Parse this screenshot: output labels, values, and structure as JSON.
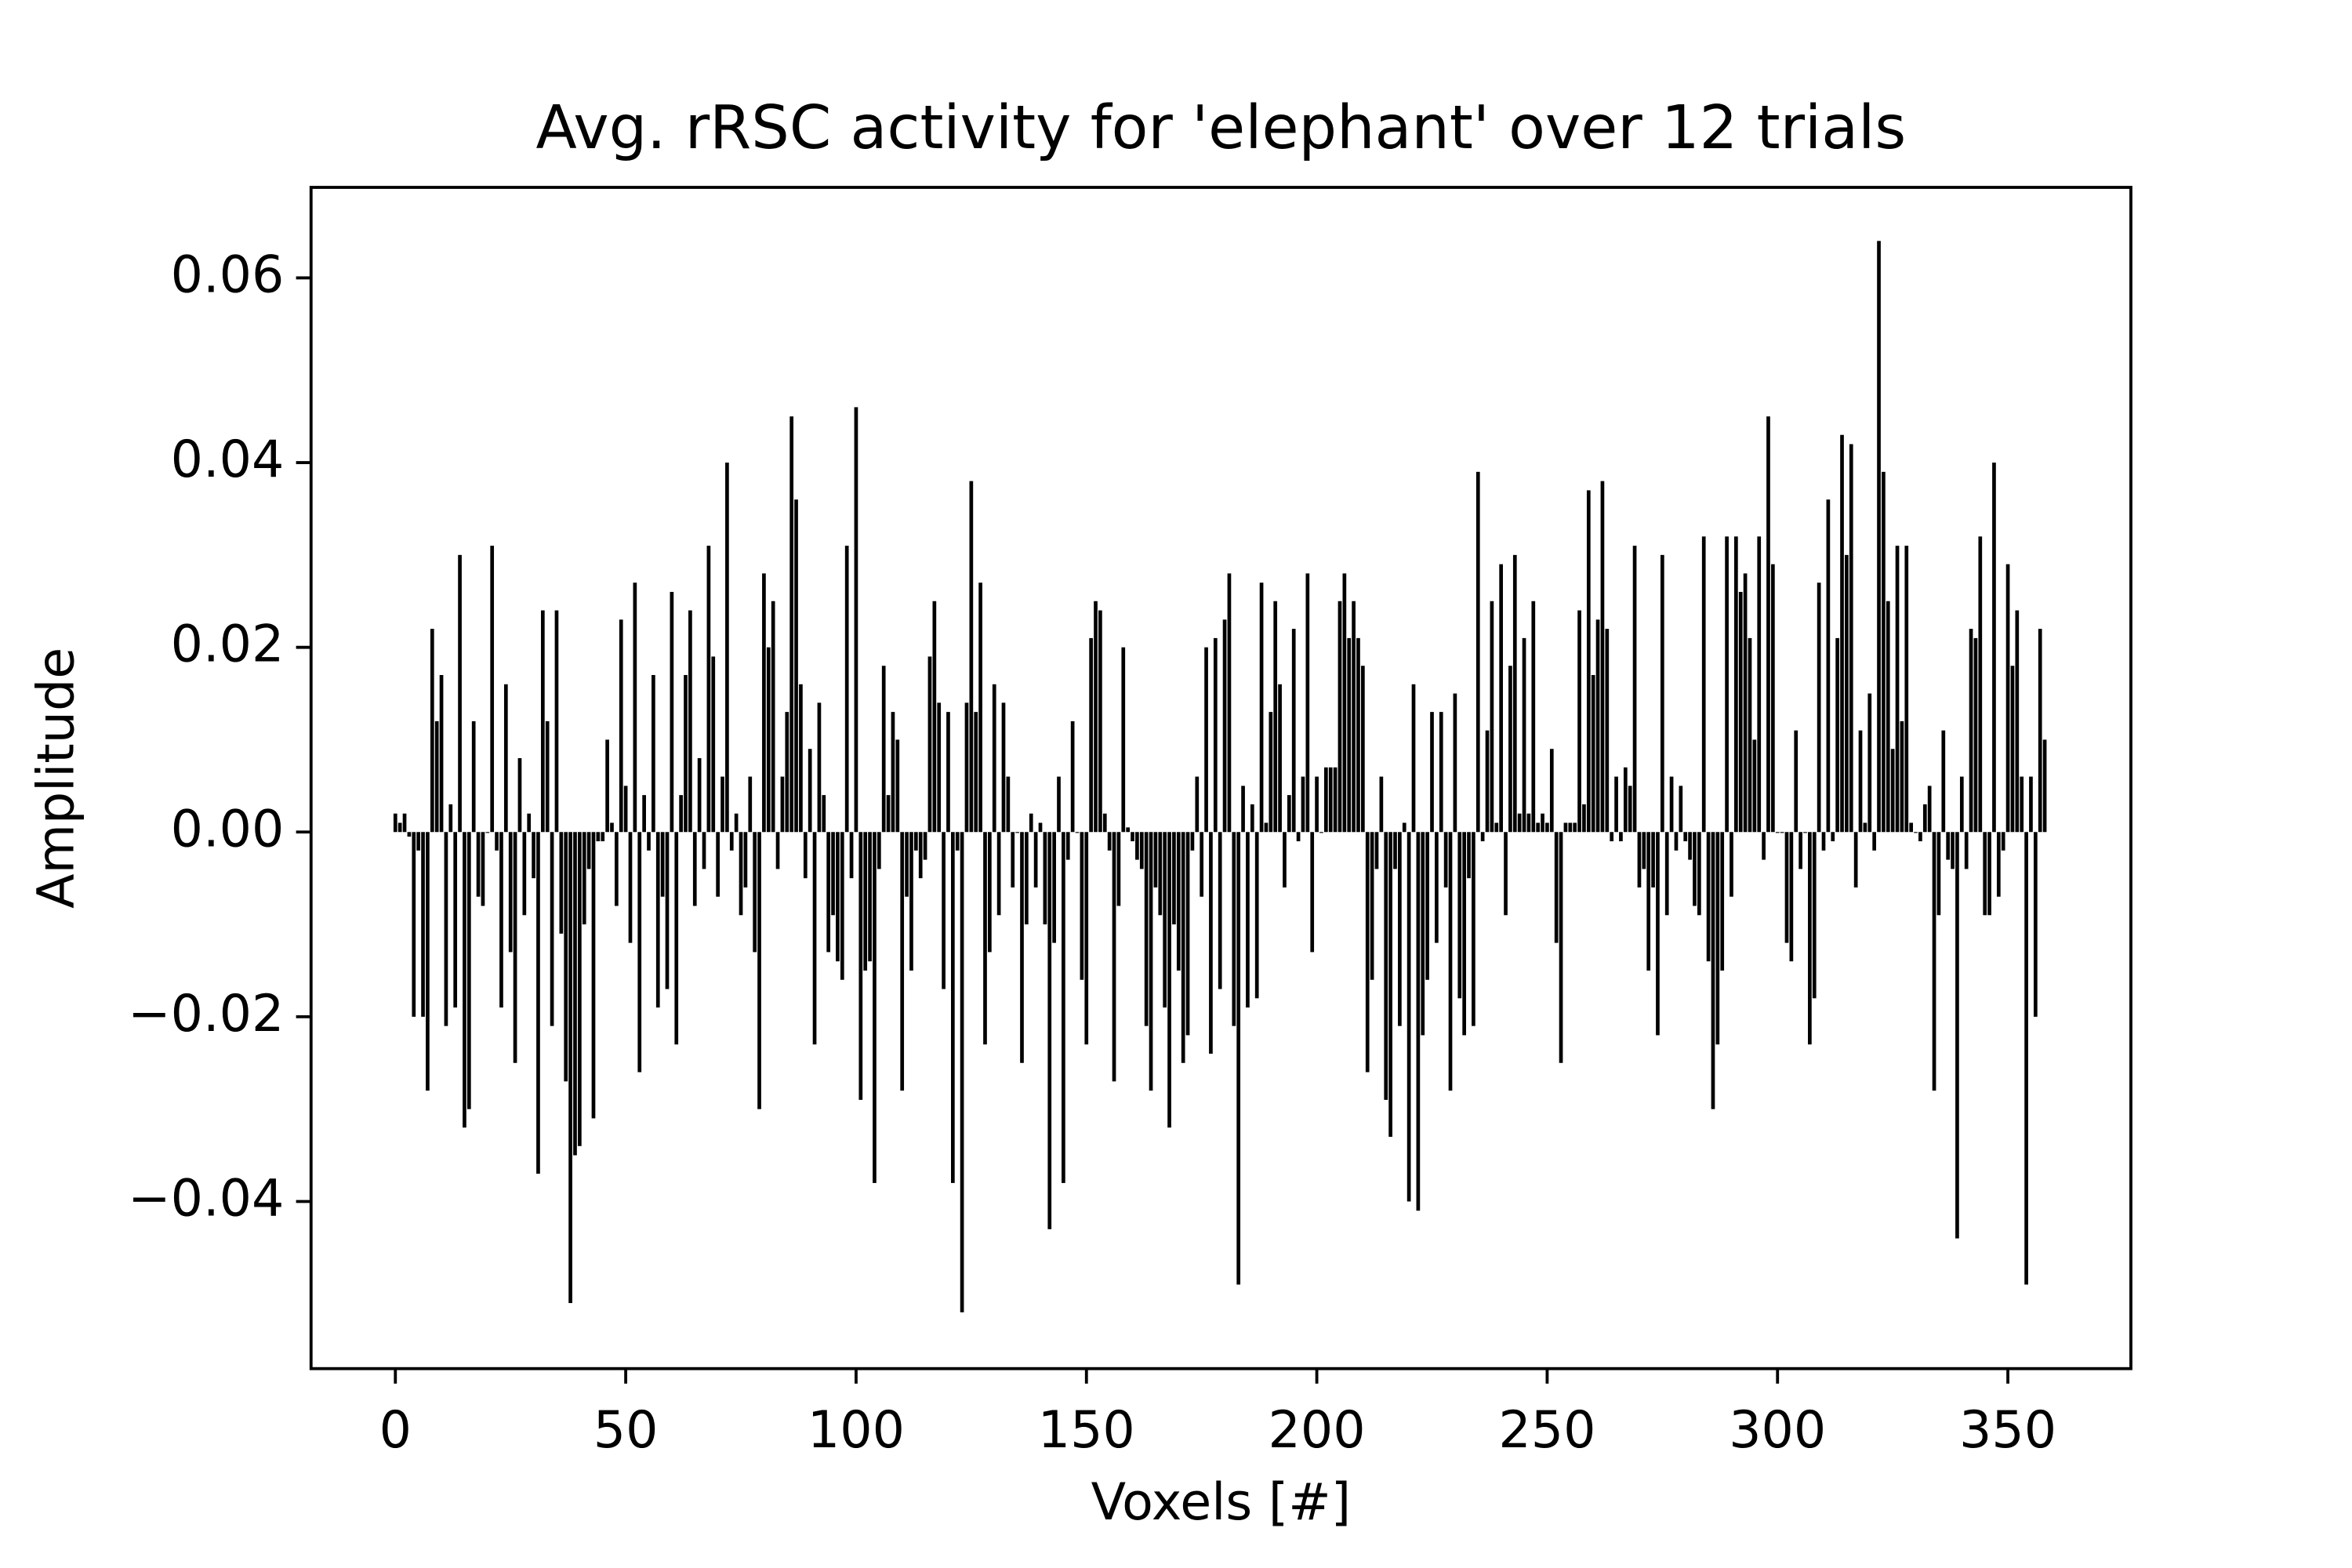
{
  "chart_data": {
    "type": "bar",
    "title": "Avg. rRSC activity for 'elephant' over 12 trials",
    "xlabel": "Voxels [#]",
    "ylabel": "Amplitude",
    "color": "#000000",
    "xlim": [
      -18.3,
      376.7
    ],
    "ylim": [
      -0.0581,
      0.0698
    ],
    "xticks": [
      0,
      50,
      100,
      150,
      200,
      250,
      300,
      350
    ],
    "yticks": [
      {
        "value": -0.04,
        "label": "−0.04"
      },
      {
        "value": -0.02,
        "label": "−0.02"
      },
      {
        "value": 0,
        "label": "0.00"
      },
      0.02,
      0.04,
      0.06
    ],
    "x": [
      0,
      1,
      2,
      3,
      4,
      5,
      6,
      7,
      8,
      9,
      10,
      11,
      12,
      13,
      14,
      15,
      16,
      17,
      18,
      19,
      20,
      21,
      22,
      23,
      24,
      25,
      26,
      27,
      28,
      29,
      30,
      31,
      32,
      33,
      34,
      35,
      36,
      37,
      38,
      39,
      40,
      41,
      42,
      43,
      44,
      45,
      46,
      47,
      48,
      49,
      50,
      51,
      52,
      53,
      54,
      55,
      56,
      57,
      58,
      59,
      60,
      61,
      62,
      63,
      64,
      65,
      66,
      67,
      68,
      69,
      70,
      71,
      72,
      73,
      74,
      75,
      76,
      77,
      78,
      79,
      80,
      81,
      82,
      83,
      84,
      85,
      86,
      87,
      88,
      89,
      90,
      91,
      92,
      93,
      94,
      95,
      96,
      97,
      98,
      99,
      100,
      101,
      102,
      103,
      104,
      105,
      106,
      107,
      108,
      109,
      110,
      111,
      112,
      113,
      114,
      115,
      116,
      117,
      118,
      119,
      120,
      121,
      122,
      123,
      124,
      125,
      126,
      127,
      128,
      129,
      130,
      131,
      132,
      133,
      134,
      135,
      136,
      137,
      138,
      139,
      140,
      141,
      142,
      143,
      144,
      145,
      146,
      147,
      148,
      149,
      150,
      151,
      152,
      153,
      154,
      155,
      156,
      157,
      158,
      159,
      160,
      161,
      162,
      163,
      164,
      165,
      166,
      167,
      168,
      169,
      170,
      171,
      172,
      173,
      174,
      175,
      176,
      177,
      178,
      179,
      180,
      181,
      182,
      183,
      184,
      185,
      186,
      187,
      188,
      189,
      190,
      191,
      192,
      193,
      194,
      195,
      196,
      197,
      198,
      199,
      200,
      201,
      202,
      203,
      204,
      205,
      206,
      207,
      208,
      209,
      210,
      211,
      212,
      213,
      214,
      215,
      216,
      217,
      218,
      219,
      220,
      221,
      222,
      223,
      224,
      225,
      226,
      227,
      228,
      229,
      230,
      231,
      232,
      233,
      234,
      235,
      236,
      237,
      238,
      239,
      240,
      241,
      242,
      243,
      244,
      245,
      246,
      247,
      248,
      249,
      250,
      251,
      252,
      253,
      254,
      255,
      256,
      257,
      258,
      259,
      260,
      261,
      262,
      263,
      264,
      265,
      266,
      267,
      268,
      269,
      270,
      271,
      272,
      273,
      274,
      275,
      276,
      277,
      278,
      279,
      280,
      281,
      282,
      283,
      284,
      285,
      286,
      287,
      288,
      289,
      290,
      291,
      292,
      293,
      294,
      295,
      296,
      297,
      298,
      299,
      300,
      301,
      302,
      303,
      304,
      305,
      306,
      307,
      308,
      309,
      310,
      311,
      312,
      313,
      314,
      315,
      316,
      317,
      318,
      319,
      320,
      321,
      322,
      323,
      324,
      325,
      326,
      327,
      328,
      329,
      330,
      331,
      332,
      333,
      334,
      335,
      336,
      337,
      338,
      339,
      340,
      341,
      342,
      343,
      344,
      345,
      346,
      347,
      348,
      349,
      350,
      351,
      352,
      353,
      354,
      355,
      356,
      357,
      358
    ],
    "values": [
      0.002,
      0.001,
      0.002,
      -0.0005,
      -0.02,
      -0.002,
      -0.02,
      -0.028,
      0.022,
      0.012,
      0.017,
      -0.021,
      0.003,
      -0.019,
      0.03,
      -0.032,
      -0.03,
      0.012,
      -0.007,
      -0.008,
      0.0,
      0.031,
      -0.002,
      -0.019,
      0.016,
      -0.013,
      -0.025,
      0.008,
      -0.009,
      0.002,
      -0.005,
      -0.037,
      0.024,
      0.012,
      -0.021,
      0.024,
      -0.011,
      -0.027,
      -0.051,
      -0.035,
      -0.034,
      -0.01,
      -0.004,
      -0.031,
      -0.001,
      -0.001,
      0.01,
      0.001,
      -0.008,
      0.023,
      0.005,
      -0.012,
      0.027,
      -0.026,
      0.004,
      -0.002,
      0.017,
      -0.019,
      -0.007,
      -0.017,
      0.026,
      -0.023,
      0.004,
      0.017,
      0.024,
      -0.008,
      0.008,
      -0.004,
      0.031,
      0.019,
      -0.007,
      0.006,
      0.04,
      -0.002,
      0.002,
      -0.009,
      -0.006,
      0.006,
      -0.013,
      -0.03,
      0.028,
      0.02,
      0.025,
      -0.004,
      0.006,
      0.013,
      0.045,
      0.036,
      0.016,
      -0.005,
      0.009,
      -0.023,
      0.014,
      0.004,
      -0.013,
      -0.009,
      -0.014,
      -0.016,
      0.031,
      -0.005,
      0.046,
      -0.029,
      -0.015,
      -0.014,
      -0.038,
      -0.004,
      0.018,
      0.004,
      0.013,
      0.01,
      -0.028,
      -0.007,
      -0.015,
      -0.002,
      -0.005,
      -0.003,
      0.019,
      0.025,
      0.014,
      -0.017,
      0.013,
      -0.038,
      -0.002,
      -0.052,
      0.014,
      0.038,
      0.013,
      0.027,
      -0.023,
      -0.013,
      0.016,
      -0.009,
      0.014,
      0.006,
      -0.006,
      0.0,
      -0.025,
      -0.01,
      0.002,
      -0.006,
      0.001,
      -0.01,
      -0.043,
      -0.012,
      0.006,
      -0.038,
      -0.003,
      0.012,
      0.0,
      -0.016,
      -0.023,
      0.021,
      0.025,
      0.024,
      0.002,
      -0.002,
      -0.027,
      -0.008,
      0.02,
      0.0005,
      -0.001,
      -0.003,
      -0.004,
      -0.021,
      -0.028,
      -0.006,
      -0.009,
      -0.019,
      -0.032,
      -0.01,
      -0.015,
      -0.025,
      -0.022,
      -0.002,
      0.006,
      -0.007,
      0.02,
      -0.024,
      0.021,
      -0.017,
      0.023,
      0.028,
      -0.021,
      -0.049,
      0.005,
      -0.019,
      0.003,
      -0.018,
      0.027,
      0.001,
      0.013,
      0.025,
      0.016,
      -0.006,
      0.004,
      0.022,
      -0.001,
      0.006,
      0.028,
      -0.013,
      0.006,
      0.0,
      0.007,
      0.007,
      0.007,
      0.025,
      0.028,
      0.021,
      0.025,
      0.021,
      0.018,
      -0.026,
      -0.016,
      -0.004,
      0.006,
      -0.029,
      -0.033,
      -0.004,
      -0.021,
      0.001,
      -0.04,
      0.016,
      -0.041,
      -0.022,
      -0.016,
      0.013,
      -0.012,
      0.013,
      -0.006,
      -0.028,
      0.015,
      -0.018,
      -0.022,
      -0.005,
      -0.021,
      0.039,
      -0.001,
      0.011,
      0.025,
      0.001,
      0.029,
      -0.009,
      0.018,
      0.03,
      0.002,
      0.021,
      0.002,
      0.025,
      0.001,
      0.002,
      0.001,
      0.009,
      -0.012,
      -0.025,
      0.001,
      0.001,
      0.001,
      0.024,
      0.003,
      0.037,
      0.017,
      0.023,
      0.038,
      0.022,
      -0.001,
      0.006,
      -0.001,
      0.007,
      0.005,
      0.031,
      -0.006,
      -0.004,
      -0.015,
      -0.006,
      -0.022,
      0.03,
      -0.009,
      0.006,
      -0.002,
      0.005,
      -0.001,
      -0.003,
      -0.008,
      -0.009,
      0.032,
      -0.014,
      -0.03,
      -0.023,
      -0.015,
      0.032,
      -0.007,
      0.032,
      0.026,
      0.028,
      0.021,
      0.01,
      0.032,
      -0.003,
      0.045,
      0.029,
      0.0,
      0.0,
      -0.012,
      -0.014,
      0.011,
      -0.004,
      0.0,
      -0.023,
      -0.018,
      0.027,
      -0.002,
      0.036,
      -0.001,
      0.021,
      0.043,
      0.03,
      0.042,
      -0.006,
      0.011,
      0.001,
      0.015,
      -0.002,
      0.064,
      0.039,
      0.025,
      0.009,
      0.031,
      0.012,
      0.031,
      0.001,
      0.0,
      -0.001,
      0.003,
      0.005,
      -0.028,
      -0.009,
      0.011,
      -0.003,
      -0.004,
      -0.044,
      0.006,
      -0.004,
      0.022,
      0.021,
      0.032,
      -0.009,
      -0.009,
      0.04,
      -0.007,
      -0.002,
      0.029,
      0.018,
      0.024,
      0.006,
      -0.049,
      0.006,
      -0.02,
      0.022,
      0.01
    ]
  }
}
